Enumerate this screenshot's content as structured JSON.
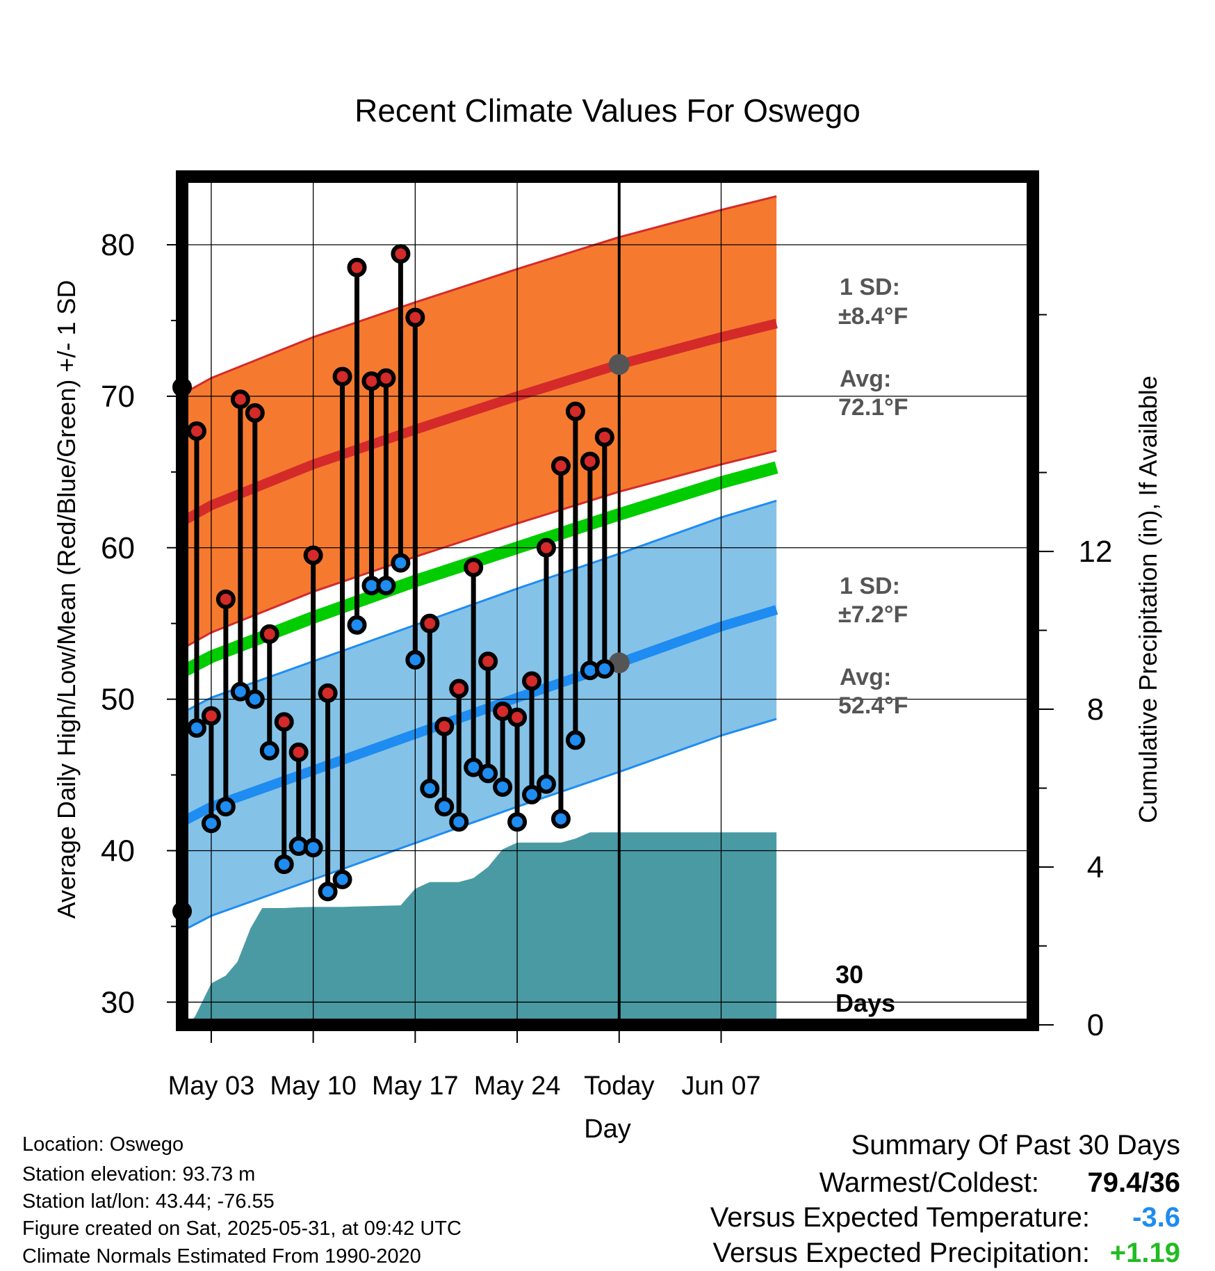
{
  "chart_data": {
    "type": "line",
    "title": "Recent Climate Values For Oswego",
    "xlabel": "Day",
    "ylabel_left": "Average Daily High/Low/Mean (Red/Blue/Green) +/- 1 SD",
    "ylabel_right": "Cumulative Precipitation (in), If Available",
    "ylim_left": [
      28.5,
      84.5
    ],
    "ylim_right": [
      0,
      21.5
    ],
    "xlim_day": [
      0,
      58.4
    ],
    "x_ticks": [
      {
        "day": 2,
        "label": "May 03"
      },
      {
        "day": 9,
        "label": "May 10"
      },
      {
        "day": 16,
        "label": "May 17"
      },
      {
        "day": 23,
        "label": "May 24"
      },
      {
        "day": 30,
        "label": "Today"
      },
      {
        "day": 37,
        "label": "Jun 07"
      }
    ],
    "y_ticks_left": [
      30,
      40,
      50,
      60,
      70,
      80
    ],
    "y_ticks_right": [
      0,
      4,
      8,
      12
    ],
    "grid": true,
    "today_day": 30,
    "today_label": "30\nDays",
    "high_avg": {
      "name": "Avg High",
      "x": [
        -0.8,
        2,
        9,
        16,
        23,
        30,
        37,
        40.8
      ],
      "values": [
        61.3,
        62.8,
        65.5,
        67.8,
        70.0,
        72.1,
        73.9,
        74.8
      ],
      "sd": 8.4,
      "color": "#d42a2a",
      "band_color": "#f57a30"
    },
    "low_avg": {
      "name": "Avg Low",
      "x": [
        -0.8,
        2,
        9,
        16,
        23,
        30,
        37,
        40.8
      ],
      "values": [
        41.5,
        42.9,
        45.3,
        47.7,
        50.1,
        52.4,
        54.8,
        55.9
      ],
      "sd": 7.2,
      "color": "#1e8cf0",
      "band_color": "#85c2e8"
    },
    "mean_avg": {
      "name": "Avg Mean",
      "x": [
        -0.8,
        2,
        9,
        16,
        23,
        30,
        37,
        40.8
      ],
      "values": [
        51.4,
        52.8,
        55.4,
        57.8,
        60.0,
        62.2,
        64.3,
        65.3
      ],
      "color": "#00cc00"
    },
    "daily": {
      "x": [
        0,
        1,
        2,
        3,
        4,
        5,
        6,
        7,
        8,
        9,
        10,
        11,
        12,
        13,
        14,
        15,
        16,
        17,
        18,
        19,
        20,
        21,
        22,
        23,
        24,
        25,
        26,
        27,
        28,
        29
      ],
      "highs": [
        70.6,
        67.7,
        48.9,
        56.6,
        69.8,
        68.9,
        54.3,
        48.5,
        46.5,
        59.5,
        50.4,
        71.3,
        78.5,
        71.0,
        71.2,
        79.4,
        75.2,
        55.0,
        48.2,
        50.7,
        58.7,
        52.5,
        49.2,
        48.8,
        51.2,
        60.0,
        65.4,
        69.0,
        65.7,
        67.3
      ],
      "lows": [
        36.0,
        48.1,
        41.8,
        42.9,
        50.5,
        50.0,
        46.6,
        39.1,
        40.3,
        40.2,
        37.3,
        38.1,
        54.9,
        57.5,
        57.5,
        59.0,
        52.6,
        44.1,
        42.9,
        41.9,
        45.5,
        45.1,
        44.2,
        41.9,
        43.7,
        44.4,
        42.1,
        47.3,
        51.9,
        52.0
      ],
      "high_color": "#d42a2a",
      "low_color": "#1e8cf0"
    },
    "precip": {
      "name": "Cumulative Precipitation",
      "color": "#4a9aa4",
      "x": [
        -0.8,
        0.4,
        0.9,
        2.0,
        3.0,
        3.8,
        4.7,
        5.5,
        6.2,
        7.0,
        8.0,
        9.0,
        10.0,
        11.0,
        12.0,
        13.0,
        14.0,
        15.0,
        16.0,
        17.0,
        18.0,
        19.0,
        20.0,
        21.0,
        22.0,
        23.0,
        24.0,
        25.0,
        26.0,
        27.0,
        28.0,
        29.0,
        30.0,
        37.0,
        40.8
      ],
      "values": [
        0.0,
        0.0,
        0.22,
        1.05,
        1.25,
        1.6,
        2.45,
        2.96,
        2.96,
        2.96,
        2.98,
        2.99,
        2.99,
        2.99,
        3.0,
        3.01,
        3.02,
        3.03,
        3.45,
        3.62,
        3.62,
        3.62,
        3.72,
        4.0,
        4.45,
        4.62,
        4.62,
        4.62,
        4.62,
        4.72,
        4.88,
        4.88,
        4.88,
        4.88,
        4.88
      ]
    },
    "annotations": {
      "high_sd_label": "1 SD:",
      "high_sd_value": "±8.4°F",
      "high_avg_label": "Avg:",
      "high_avg_value": "72.1°F",
      "low_sd_label": "1 SD:",
      "low_sd_value": "±7.2°F",
      "low_avg_label": "Avg:",
      "low_avg_value": "52.4°F"
    }
  },
  "info": {
    "location": "Location: Oswego",
    "elevation": "Station elevation: 93.73 m",
    "latlon": "Station lat/lon: 43.44; -76.55",
    "created": "Figure created on Sat, 2025-05-31, at 09:42 UTC",
    "normals": "Climate Normals Estimated From 1990-2020"
  },
  "summary": {
    "title": "Summary Of Past 30 Days",
    "warm_cold_label": "Warmest/Coldest:",
    "warm_cold_value": "79.4/36",
    "temp_label": "Versus Expected Temperature:",
    "temp_value": "-3.6",
    "temp_color": "#1e8cf0",
    "precip_label": "Versus Expected Precipitation:",
    "precip_value": "+1.19",
    "precip_color": "#22bb22"
  }
}
